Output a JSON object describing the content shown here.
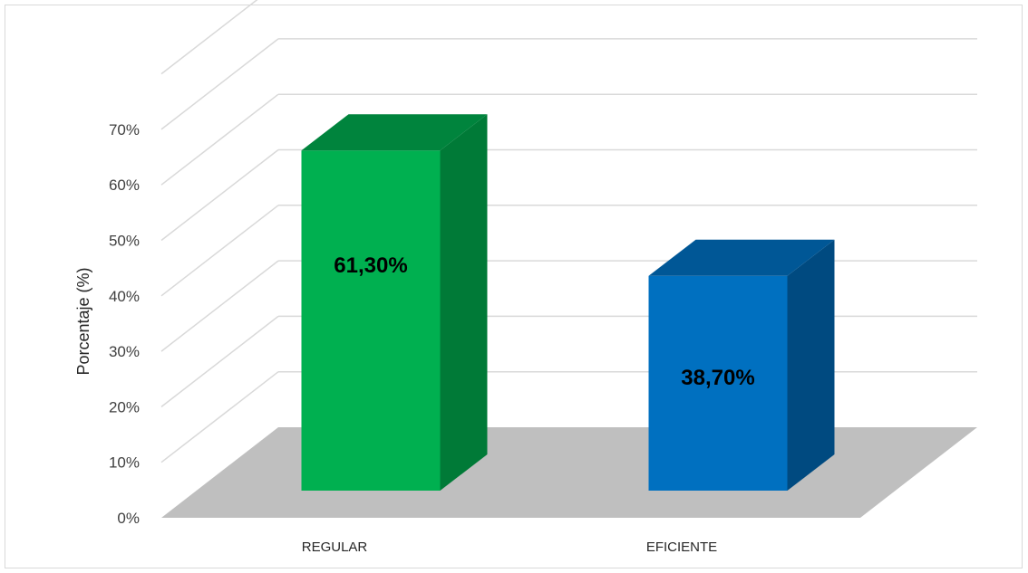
{
  "chart_data": {
    "type": "bar",
    "style": "3d-column",
    "categories": [
      "REGULAR",
      "EFICIENTE"
    ],
    "values": [
      61.3,
      38.7
    ],
    "data_labels": [
      "61,30%",
      "38,70%"
    ],
    "colors": {
      "front": [
        "#00b050",
        "#0070c0"
      ],
      "side": [
        "#007a37",
        "#004a80"
      ],
      "top": [
        "#00843d",
        "#005796"
      ],
      "floor": "#bfbfbf",
      "gridline": "#d9d9d9"
    },
    "yticks": [
      "0%",
      "10%",
      "20%",
      "30%",
      "40%",
      "50%",
      "60%",
      "70%"
    ],
    "ylabel": "Porcentaje (%)",
    "ylim": [
      0,
      70
    ],
    "grid": true,
    "legend": "none",
    "title": ""
  }
}
